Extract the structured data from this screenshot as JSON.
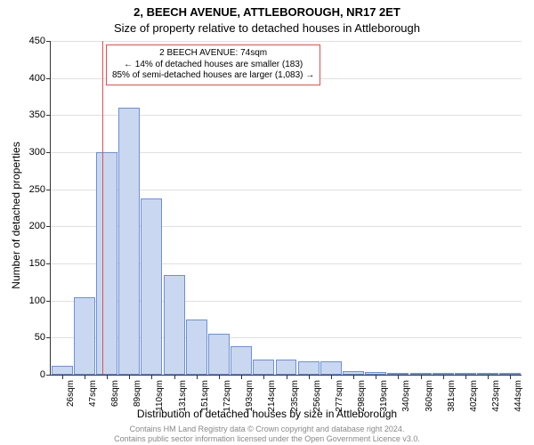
{
  "chart": {
    "type": "histogram",
    "title_line1": "2, BEECH AVENUE, ATTLEBOROUGH, NR17 2ET",
    "title_line2": "Size of property relative to detached houses in Attleborough",
    "ylabel": "Number of detached properties",
    "xlabel": "Distribution of detached houses by size in Attleborough",
    "background_color": "#ffffff",
    "grid_color": "#e0e0e0",
    "axis_color": "#333333",
    "bar_fill": "#c9d7f0",
    "bar_stroke": "#6e8fd6",
    "bar_width": 0.95,
    "ylim": [
      0,
      450
    ],
    "ytick_step": 50,
    "yticks": [
      0,
      50,
      100,
      150,
      200,
      250,
      300,
      350,
      400,
      450
    ],
    "categories": [
      "26sqm",
      "47sqm",
      "68sqm",
      "89sqm",
      "110sqm",
      "131sqm",
      "151sqm",
      "172sqm",
      "193sqm",
      "214sqm",
      "235sqm",
      "256sqm",
      "277sqm",
      "298sqm",
      "319sqm",
      "340sqm",
      "360sqm",
      "381sqm",
      "402sqm",
      "423sqm",
      "444sqm"
    ],
    "values": [
      12,
      105,
      300,
      360,
      238,
      135,
      75,
      55,
      38,
      20,
      20,
      18,
      18,
      5,
      4,
      2,
      0,
      0,
      2,
      0,
      0
    ],
    "reference_line": {
      "index": 2,
      "fraction": 0.3,
      "color": "#e05050"
    },
    "annotation": {
      "line1": "2 BEECH AVENUE: 74sqm",
      "line2": "← 14% of detached houses are smaller (183)",
      "line3": "85% of semi-detached houses are larger (1,083) →",
      "border_color": "#e05050",
      "bg_color": "#ffffff"
    },
    "title_fontsize": 13,
    "label_fontsize": 12,
    "tick_fontsize": 11
  },
  "footer": {
    "line1": "Contains HM Land Registry data © Crown copyright and database right 2024.",
    "line2": "Contains public sector information licensed under the Open Government Licence v3.0.",
    "color": "#888888",
    "fontsize": 9
  }
}
